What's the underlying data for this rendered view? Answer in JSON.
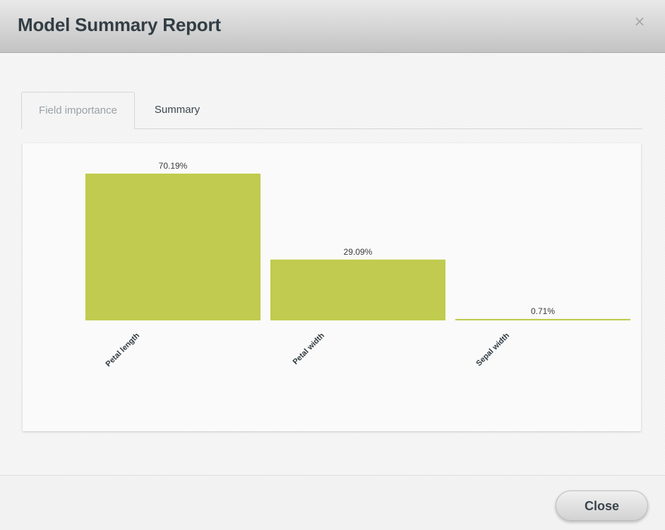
{
  "dialog": {
    "title": "Model Summary Report",
    "close_symbol": "×",
    "close_icon": "close-icon"
  },
  "tabs": [
    {
      "label": "Field importance",
      "active": true
    },
    {
      "label": "Summary",
      "active": false
    }
  ],
  "footer": {
    "close_label": "Close"
  },
  "colors": {
    "bar": "#c0cb4f",
    "title": "#323d44"
  },
  "chart_data": {
    "type": "bar",
    "categories": [
      "Petal length",
      "Petal width",
      "Sepal width"
    ],
    "values": [
      70.19,
      29.09,
      0.71
    ],
    "data_labels": [
      "70.19%",
      "29.09%",
      "0.71%"
    ],
    "ylim": [
      0,
      70.19
    ],
    "grid": false,
    "legend": "none"
  }
}
